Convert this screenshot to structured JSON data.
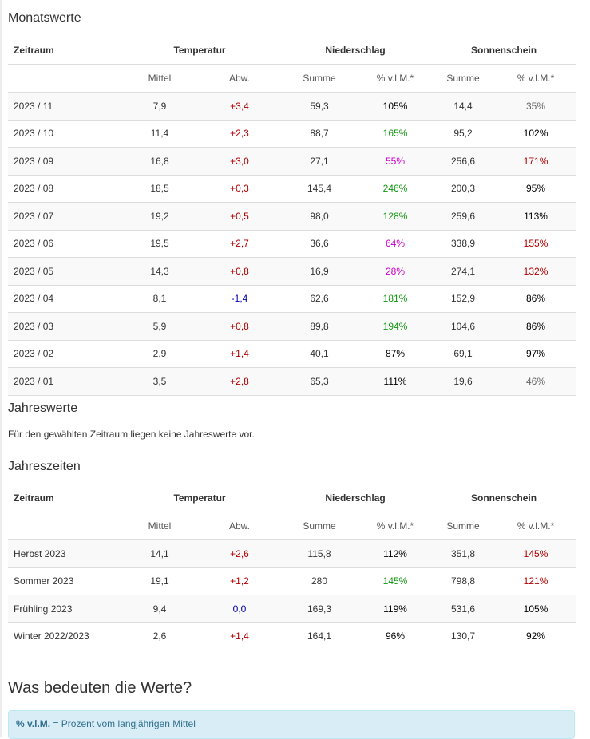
{
  "monthly": {
    "title": "Monatswerte",
    "headers": {
      "period": "Zeitraum",
      "temperature": "Temperatur",
      "precipitation": "Niederschlag",
      "sunshine": "Sonnenschein",
      "mean": "Mittel",
      "deviation": "Abw.",
      "sum_precip": "Summe",
      "pct_precip": "% v.l.M.*",
      "sum_sun": "Summe",
      "pct_sun": "% v.l.M.*"
    },
    "rows": [
      {
        "period": "2023 / 11",
        "mean": "7,9",
        "dev": "+3,4",
        "dev_color": "red",
        "precip": "59,3",
        "precip_pct": "105%",
        "precip_pct_color": "black",
        "sun": "14,4",
        "sun_pct": "35%",
        "sun_pct_color": "gray"
      },
      {
        "period": "2023 / 10",
        "mean": "11,4",
        "dev": "+2,3",
        "dev_color": "red",
        "precip": "88,7",
        "precip_pct": "165%",
        "precip_pct_color": "green",
        "sun": "95,2",
        "sun_pct": "102%",
        "sun_pct_color": "black"
      },
      {
        "period": "2023 / 09",
        "mean": "16,8",
        "dev": "+3,0",
        "dev_color": "red",
        "precip": "27,1",
        "precip_pct": "55%",
        "precip_pct_color": "magenta",
        "sun": "256,6",
        "sun_pct": "171%",
        "sun_pct_color": "red"
      },
      {
        "period": "2023 / 08",
        "mean": "18,5",
        "dev": "+0,3",
        "dev_color": "red",
        "precip": "145,4",
        "precip_pct": "246%",
        "precip_pct_color": "green",
        "sun": "200,3",
        "sun_pct": "95%",
        "sun_pct_color": "black"
      },
      {
        "period": "2023 / 07",
        "mean": "19,2",
        "dev": "+0,5",
        "dev_color": "red",
        "precip": "98,0",
        "precip_pct": "128%",
        "precip_pct_color": "green",
        "sun": "259,6",
        "sun_pct": "113%",
        "sun_pct_color": "black"
      },
      {
        "period": "2023 / 06",
        "mean": "19,5",
        "dev": "+2,7",
        "dev_color": "red",
        "precip": "36,6",
        "precip_pct": "64%",
        "precip_pct_color": "magenta",
        "sun": "338,9",
        "sun_pct": "155%",
        "sun_pct_color": "red"
      },
      {
        "period": "2023 / 05",
        "mean": "14,3",
        "dev": "+0,8",
        "dev_color": "red",
        "precip": "16,9",
        "precip_pct": "28%",
        "precip_pct_color": "magenta",
        "sun": "274,1",
        "sun_pct": "132%",
        "sun_pct_color": "red"
      },
      {
        "period": "2023 / 04",
        "mean": "8,1",
        "dev": "-1,4",
        "dev_color": "blue",
        "precip": "62,6",
        "precip_pct": "181%",
        "precip_pct_color": "green",
        "sun": "152,9",
        "sun_pct": "86%",
        "sun_pct_color": "black"
      },
      {
        "period": "2023 / 03",
        "mean": "5,9",
        "dev": "+0,8",
        "dev_color": "red",
        "precip": "89,8",
        "precip_pct": "194%",
        "precip_pct_color": "green",
        "sun": "104,6",
        "sun_pct": "86%",
        "sun_pct_color": "black"
      },
      {
        "period": "2023 / 02",
        "mean": "2,9",
        "dev": "+1,4",
        "dev_color": "red",
        "precip": "40,1",
        "precip_pct": "87%",
        "precip_pct_color": "black",
        "sun": "69,1",
        "sun_pct": "97%",
        "sun_pct_color": "black"
      },
      {
        "period": "2023 / 01",
        "mean": "3,5",
        "dev": "+2,8",
        "dev_color": "red",
        "precip": "65,3",
        "precip_pct": "111%",
        "precip_pct_color": "black",
        "sun": "19,6",
        "sun_pct": "46%",
        "sun_pct_color": "gray"
      }
    ]
  },
  "yearly": {
    "title": "Jahreswerte",
    "note": "Für den gewählten Zeitraum liegen keine Jahreswerte vor."
  },
  "seasons": {
    "title": "Jahreszeiten",
    "headers": {
      "period": "Zeitraum",
      "temperature": "Temperatur",
      "precipitation": "Niederschlag",
      "sunshine": "Sonnenschein",
      "mean": "Mittel",
      "deviation": "Abw.",
      "sum_precip": "Summe",
      "pct_precip": "% v.l.M.*",
      "sum_sun": "Summe",
      "pct_sun": "% v.l.M.*"
    },
    "rows": [
      {
        "period": "Herbst 2023",
        "mean": "14,1",
        "dev": "+2,6",
        "dev_color": "red",
        "precip": "115,8",
        "precip_pct": "112%",
        "precip_pct_color": "black",
        "sun": "351,8",
        "sun_pct": "145%",
        "sun_pct_color": "red"
      },
      {
        "period": "Sommer 2023",
        "mean": "19,1",
        "dev": "+1,2",
        "dev_color": "red",
        "precip": "280",
        "precip_pct": "145%",
        "precip_pct_color": "green",
        "sun": "798,8",
        "sun_pct": "121%",
        "sun_pct_color": "red"
      },
      {
        "period": "Frühling 2023",
        "mean": "9,4",
        "dev": "0,0",
        "dev_color": "blue",
        "precip": "169,3",
        "precip_pct": "119%",
        "precip_pct_color": "black",
        "sun": "531,6",
        "sun_pct": "105%",
        "sun_pct_color": "black"
      },
      {
        "period": "Winter 2022/2023",
        "mean": "2,6",
        "dev": "+1,4",
        "dev_color": "red",
        "precip": "164,1",
        "precip_pct": "96%",
        "precip_pct_color": "black",
        "sun": "130,7",
        "sun_pct": "92%",
        "sun_pct_color": "black"
      }
    ]
  },
  "explanation": {
    "title": "Was bedeuten die Werte?",
    "info_abbr": "% v.l.M.",
    "info_text": " = Prozent vom langjährigen Mittel"
  },
  "colors": {
    "red": "#b00000",
    "blue": "#0000b0",
    "green": "#119911",
    "magenta": "#cc00cc",
    "black": "#000000",
    "gray": "#666666",
    "link": "#3a7fc0"
  }
}
